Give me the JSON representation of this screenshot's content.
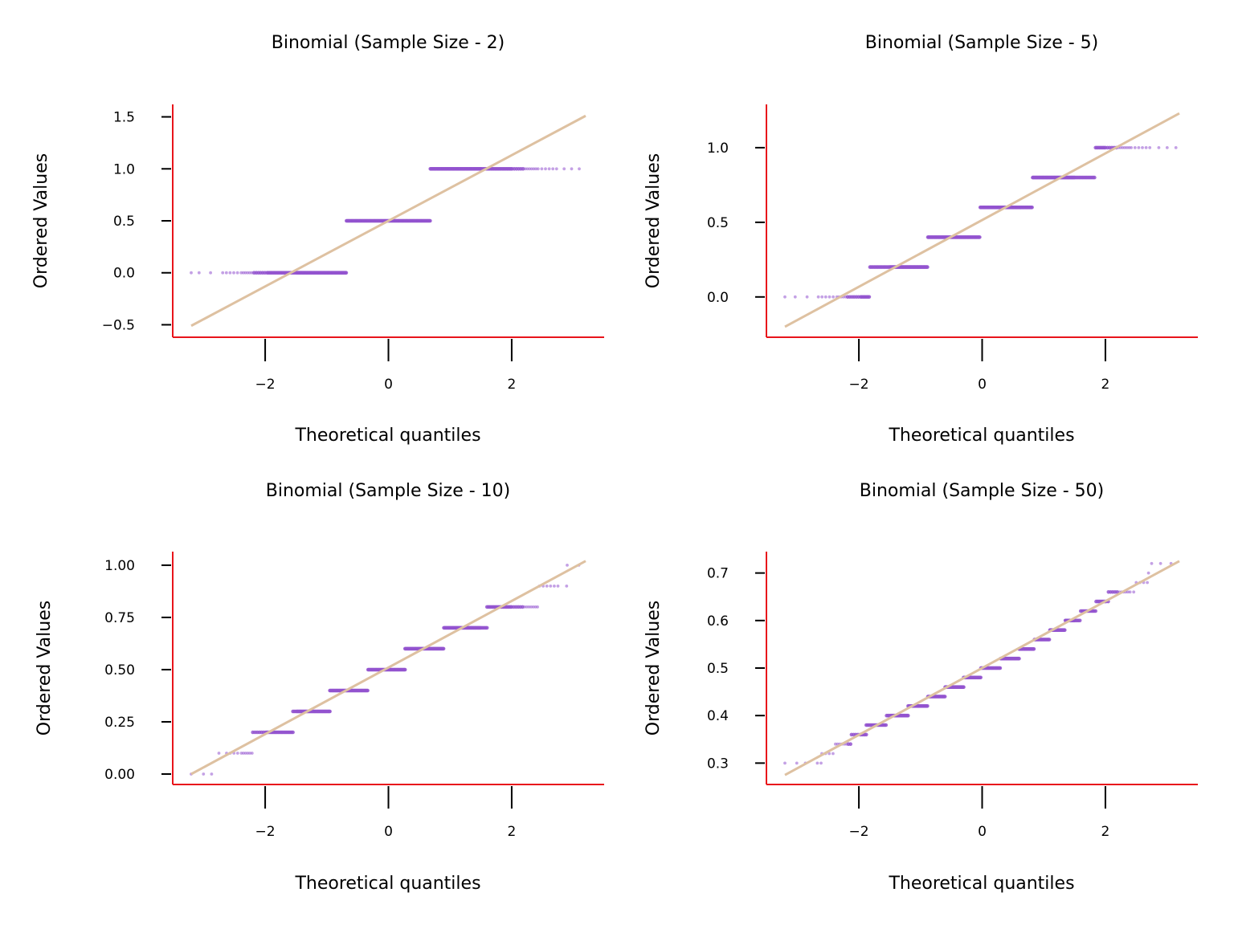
{
  "colors": {
    "points": "#9354cf",
    "reference_line": "#dec1a1",
    "spines": "#e8141b"
  },
  "chart_data": [
    {
      "type": "scatter",
      "title": "Binomial (Sample Size - 2)",
      "xlabel": "Theoretical quantiles",
      "ylabel": "Ordered Values",
      "xlim": [
        -3.5,
        3.5
      ],
      "ylim": [
        -0.62,
        1.62
      ],
      "xticks": [
        -2,
        0,
        2
      ],
      "xtick_labels": [
        "−2",
        "0",
        "2"
      ],
      "yticks": [
        -0.5,
        0.0,
        0.5,
        1.0,
        1.5
      ],
      "ytick_labels": [
        "−0.5",
        "0.0",
        "0.5",
        "1.0",
        "1.5"
      ],
      "levels": [
        {
          "y": 0.0,
          "x_start": -3.2,
          "x_end": -0.68
        },
        {
          "y": 0.5,
          "x_start": -0.68,
          "x_end": 0.68
        },
        {
          "y": 1.0,
          "x_start": 0.68,
          "x_end": 3.2
        }
      ],
      "reference_line": {
        "x": [
          -3.2,
          3.2
        ],
        "y": [
          -0.51,
          1.51
        ]
      },
      "legend": "none",
      "grid": false
    },
    {
      "type": "scatter",
      "title": "Binomial (Sample Size - 5)",
      "xlabel": "Theoretical quantiles",
      "ylabel": "Ordered Values",
      "xlim": [
        -3.5,
        3.5
      ],
      "ylim": [
        -0.27,
        1.29
      ],
      "xticks": [
        -2,
        0,
        2
      ],
      "xtick_labels": [
        "−2",
        "0",
        "2"
      ],
      "yticks": [
        0.0,
        0.5,
        1.0
      ],
      "ytick_labels": [
        "0.0",
        "0.5",
        "1.0"
      ],
      "levels": [
        {
          "y": 0.0,
          "x_start": -3.2,
          "x_end": -1.82
        },
        {
          "y": 0.2,
          "x_start": -1.82,
          "x_end": -0.88
        },
        {
          "y": 0.4,
          "x_start": -0.88,
          "x_end": -0.03
        },
        {
          "y": 0.6,
          "x_start": -0.03,
          "x_end": 0.82
        },
        {
          "y": 0.8,
          "x_start": 0.82,
          "x_end": 1.84
        },
        {
          "y": 1.0,
          "x_start": 1.84,
          "x_end": 3.2
        }
      ],
      "reference_line": {
        "x": [
          -3.2,
          3.2
        ],
        "y": [
          -0.2,
          1.23
        ]
      },
      "legend": "none",
      "grid": false
    },
    {
      "type": "scatter",
      "title": "Binomial (Sample Size - 10)",
      "xlabel": "Theoretical quantiles",
      "ylabel": "Ordered Values",
      "xlim": [
        -3.5,
        3.5
      ],
      "ylim": [
        -0.05,
        1.065
      ],
      "xticks": [
        -2,
        0,
        2
      ],
      "xtick_labels": [
        "−2",
        "0",
        "2"
      ],
      "yticks": [
        0.0,
        0.25,
        0.5,
        0.75,
        1.0
      ],
      "ytick_labels": [
        "0.00",
        "0.25",
        "0.50",
        "0.75",
        "1.00"
      ],
      "levels": [
        {
          "y": 0.0,
          "x_start": -3.2,
          "x_end": -2.75
        },
        {
          "y": 0.1,
          "x_start": -2.75,
          "x_end": -2.2
        },
        {
          "y": 0.2,
          "x_start": -2.2,
          "x_end": -1.55
        },
        {
          "y": 0.3,
          "x_start": -1.55,
          "x_end": -0.95
        },
        {
          "y": 0.4,
          "x_start": -0.95,
          "x_end": -0.33
        },
        {
          "y": 0.5,
          "x_start": -0.33,
          "x_end": 0.27
        },
        {
          "y": 0.6,
          "x_start": 0.27,
          "x_end": 0.9
        },
        {
          "y": 0.7,
          "x_start": 0.9,
          "x_end": 1.6
        },
        {
          "y": 0.8,
          "x_start": 1.6,
          "x_end": 2.45
        },
        {
          "y": 0.9,
          "x_start": 2.45,
          "x_end": 2.9
        },
        {
          "y": 1.0,
          "x_start": 2.9,
          "x_end": 3.2
        }
      ],
      "reference_line": {
        "x": [
          -3.2,
          3.2
        ],
        "y": [
          0.0,
          1.02
        ]
      },
      "legend": "none",
      "grid": false
    },
    {
      "type": "scatter",
      "title": "Binomial (Sample Size - 50)",
      "xlabel": "Theoretical quantiles",
      "ylabel": "Ordered Values",
      "xlim": [
        -3.5,
        3.5
      ],
      "ylim": [
        0.255,
        0.745
      ],
      "xticks": [
        -2,
        0,
        2
      ],
      "xtick_labels": [
        "−2",
        "0",
        "2"
      ],
      "yticks": [
        0.3,
        0.4,
        0.5,
        0.6,
        0.7
      ],
      "ytick_labels": [
        "0.3",
        "0.4",
        "0.5",
        "0.6",
        "0.7"
      ],
      "levels": [
        {
          "y": 0.3,
          "x_start": -3.2,
          "x_end": -2.6
        },
        {
          "y": 0.32,
          "x_start": -2.6,
          "x_end": -2.38
        },
        {
          "y": 0.34,
          "x_start": -2.38,
          "x_end": -2.12
        },
        {
          "y": 0.36,
          "x_start": -2.12,
          "x_end": -1.88
        },
        {
          "y": 0.38,
          "x_start": -1.88,
          "x_end": -1.55
        },
        {
          "y": 0.4,
          "x_start": -1.55,
          "x_end": -1.2
        },
        {
          "y": 0.42,
          "x_start": -1.2,
          "x_end": -0.88
        },
        {
          "y": 0.44,
          "x_start": -0.88,
          "x_end": -0.6
        },
        {
          "y": 0.46,
          "x_start": -0.6,
          "x_end": -0.3
        },
        {
          "y": 0.48,
          "x_start": -0.3,
          "x_end": -0.02
        },
        {
          "y": 0.5,
          "x_start": -0.02,
          "x_end": 0.3
        },
        {
          "y": 0.52,
          "x_start": 0.3,
          "x_end": 0.6
        },
        {
          "y": 0.54,
          "x_start": 0.6,
          "x_end": 0.85
        },
        {
          "y": 0.56,
          "x_start": 0.85,
          "x_end": 1.1
        },
        {
          "y": 0.58,
          "x_start": 1.1,
          "x_end": 1.35
        },
        {
          "y": 0.6,
          "x_start": 1.35,
          "x_end": 1.6
        },
        {
          "y": 0.62,
          "x_start": 1.6,
          "x_end": 1.85
        },
        {
          "y": 0.64,
          "x_start": 1.85,
          "x_end": 2.05
        },
        {
          "y": 0.66,
          "x_start": 2.05,
          "x_end": 2.5
        },
        {
          "y": 0.68,
          "x_start": 2.5,
          "x_end": 2.7
        },
        {
          "y": 0.7,
          "x_start": 2.7,
          "x_end": 2.75
        },
        {
          "y": 0.72,
          "x_start": 2.75,
          "x_end": 3.2
        }
      ],
      "reference_line": {
        "x": [
          -3.2,
          3.2
        ],
        "y": [
          0.275,
          0.725
        ]
      },
      "legend": "none",
      "grid": false
    }
  ]
}
